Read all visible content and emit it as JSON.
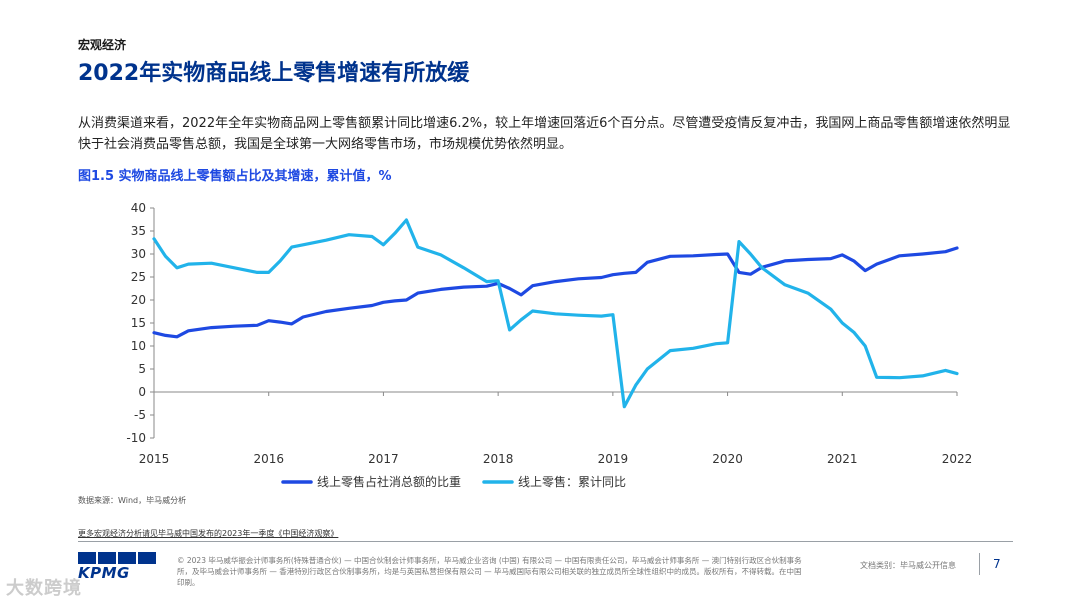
{
  "header": {
    "section": "宏观经济",
    "title": "2022年实物商品线上零售增速有所放缓"
  },
  "body_text": "从消费渠道来看，2022年全年实物商品网上零售额累计同比增速6.2%，较上年增速回落近6个百分点。尽管遭受疫情反复冲击，我国网上商品零售额增速依然明显快于社会消费品零售总额，我国是全球第一大网络零售市场，市场规模优势依然明显。",
  "figure_title": "图1.5 实物商品线上零售额占比及其增速，累计值，%",
  "chart_data": {
    "type": "line",
    "title": "图1.5 实物商品线上零售额占比及其增速，累计值，%",
    "xlabel": "",
    "ylabel": "",
    "ylim": [
      -10,
      40
    ],
    "xlim": [
      2015,
      2022
    ],
    "yticks": [
      "40",
      "35",
      "30",
      "25",
      "20",
      "15",
      "10",
      "5",
      "0",
      "-5",
      "-10"
    ],
    "xticks": [
      "2015",
      "2016",
      "2017",
      "2018",
      "2019",
      "2020",
      "2021",
      "2022"
    ],
    "legend_position": "bottom",
    "series": [
      {
        "name": "线上零售占社消总额的比重",
        "color": "#1e49e2",
        "x": [
          2015.0,
          2015.1,
          2015.2,
          2015.3,
          2015.5,
          2015.7,
          2015.9,
          2016.0,
          2016.1,
          2016.2,
          2016.3,
          2016.5,
          2016.7,
          2016.9,
          2017.0,
          2017.1,
          2017.2,
          2017.3,
          2017.5,
          2017.7,
          2017.9,
          2018.0,
          2018.1,
          2018.2,
          2018.3,
          2018.5,
          2018.7,
          2018.9,
          2019.0,
          2019.1,
          2019.2,
          2019.3,
          2019.5,
          2019.7,
          2019.9,
          2020.0,
          2020.1,
          2020.2,
          2020.3,
          2020.5,
          2020.7,
          2020.9,
          2021.0,
          2021.1,
          2021.2,
          2021.3,
          2021.5,
          2021.7,
          2021.9,
          2022.0
        ],
        "values": [
          12.9,
          12.3,
          12.0,
          13.3,
          14.0,
          14.3,
          14.5,
          15.5,
          15.2,
          14.8,
          16.3,
          17.5,
          18.2,
          18.8,
          19.5,
          19.8,
          20.0,
          21.5,
          22.3,
          22.8,
          23.0,
          23.6,
          22.5,
          21.1,
          23.1,
          24.0,
          24.6,
          24.9,
          25.5,
          25.8,
          26.0,
          28.2,
          29.5,
          29.6,
          29.9,
          30.0,
          26.0,
          25.6,
          27.1,
          28.5,
          28.8,
          29.0,
          29.8,
          28.5,
          26.4,
          27.8,
          29.6,
          30.0,
          30.5,
          31.3
        ]
      },
      {
        "name": "线上零售：累计同比",
        "color": "#21b3ea",
        "x": [
          2015.0,
          2015.1,
          2015.2,
          2015.3,
          2015.5,
          2015.7,
          2015.9,
          2016.0,
          2016.1,
          2016.2,
          2016.3,
          2016.5,
          2016.7,
          2016.9,
          2017.0,
          2017.1,
          2017.2,
          2017.3,
          2017.5,
          2017.7,
          2017.9,
          2018.0,
          2018.1,
          2018.2,
          2018.3,
          2018.5,
          2018.7,
          2018.9,
          2019.0,
          2019.1,
          2019.2,
          2019.3,
          2019.5,
          2019.7,
          2019.9,
          2020.0,
          2020.1,
          2020.2,
          2020.3,
          2020.5,
          2020.7,
          2020.9,
          2021.0,
          2021.1,
          2021.2,
          2021.3,
          2021.5,
          2021.7,
          2021.9,
          2022.0
        ],
        "values": [
          33.3,
          29.5,
          27.0,
          27.8,
          28.0,
          27.0,
          26.0,
          26.0,
          28.5,
          31.5,
          32.0,
          33.0,
          34.2,
          33.8,
          32.0,
          34.5,
          37.4,
          31.5,
          29.8,
          27.0,
          24.0,
          24.2,
          13.5,
          15.7,
          17.6,
          17.0,
          16.7,
          16.5,
          16.8,
          -3.2,
          1.5,
          5.0,
          9.0,
          9.5,
          10.5,
          10.7,
          32.7,
          30.0,
          27.0,
          23.3,
          21.5,
          18.0,
          15.0,
          13.0,
          10.0,
          3.2,
          3.1,
          3.5,
          4.7,
          4.0
        ]
      }
    ]
  },
  "footer": {
    "source": "数据来源：Wind，毕马威分析",
    "more_link": "更多宏观经济分析请见毕马威中国发布的2023年一季度《中国经济观察》",
    "logo_text": "KPMG",
    "copyright": "© 2023 毕马威华振会计师事务所(特殊普通合伙) — 中国合伙制会计师事务所，毕马威企业咨询 (中国) 有限公司 — 中国有限责任公司，毕马威会计师事务所 — 澳门特别行政区合伙制事务所，及毕马威会计师事务所 — 香港特别行政区合伙制事务所，均是与英国私营担保有限公司 — 毕马威国际有限公司相关联的独立成员所全球性组织中的成员。版权所有，不得转载。在中国印刷。",
    "doc_class": "文档类别：毕马威公开信息",
    "page_number": "7"
  },
  "watermark": "大数跨境"
}
